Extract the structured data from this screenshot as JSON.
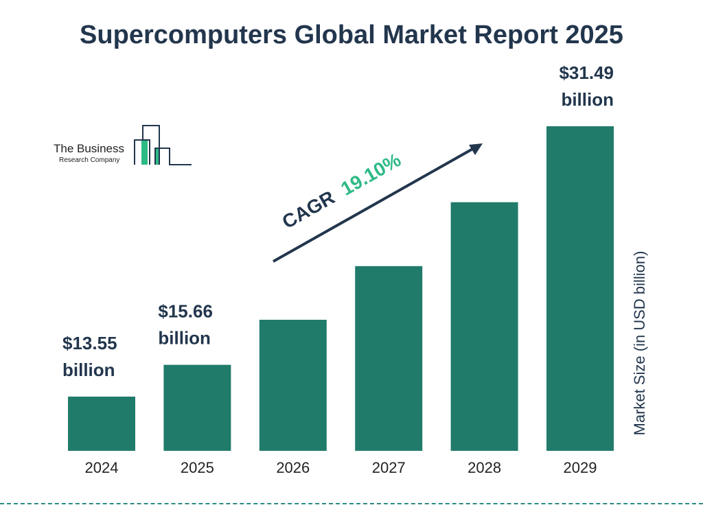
{
  "title": "Supercomputers Global Market Report 2025",
  "logo": {
    "line1": "The Business",
    "line2": "Research Company"
  },
  "cagr": {
    "label": "CAGR",
    "value": "19.10%"
  },
  "colors": {
    "bar": "#217b6b",
    "text": "#22364d",
    "accent": "#2dba85"
  },
  "chart_data": {
    "type": "bar",
    "categories": [
      "2024",
      "2025",
      "2026",
      "2027",
      "2028",
      "2029"
    ],
    "values": [
      13.55,
      15.66,
      18.65,
      22.21,
      26.45,
      31.49
    ],
    "data_labels": [
      [
        "$13.55",
        "billion"
      ],
      [
        "$15.66",
        "billion"
      ],
      null,
      null,
      null,
      [
        "$31.49",
        "billion"
      ]
    ],
    "ylabel": "Market Size (in USD billion)",
    "grid": false
  }
}
